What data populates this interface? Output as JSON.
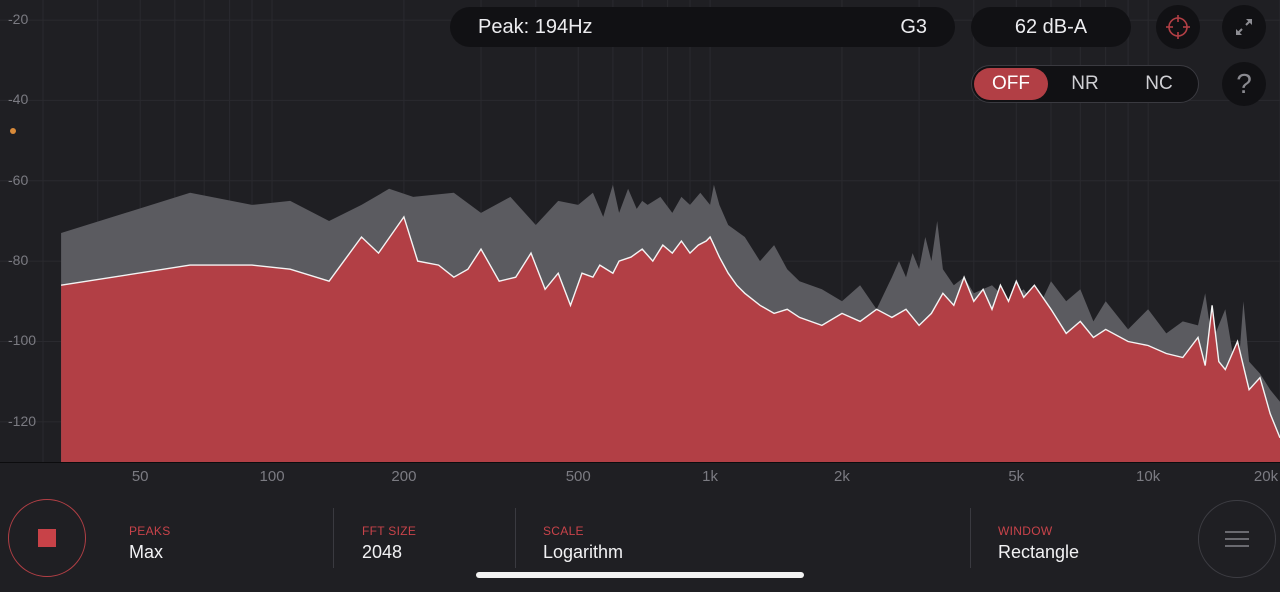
{
  "header": {
    "peak_text": "Peak: 194Hz",
    "note": "G3",
    "level": "62 dB-A",
    "help_label": "?"
  },
  "icons": {
    "target": "crosshair-icon",
    "expand": "expand-icon",
    "menu": "hamburger-menu-icon",
    "stop": "stop-icon"
  },
  "mode": {
    "options": [
      "OFF",
      "NR",
      "NC"
    ],
    "selected": "OFF"
  },
  "colors": {
    "accent": "#b23f45",
    "peak_fill": "#5b5b60",
    "bg": "#1f1f23"
  },
  "chart_data": {
    "type": "area",
    "x_scale": "log",
    "xlim": [
      30,
      20000
    ],
    "ylim": [
      -130,
      -15
    ],
    "y_ticks": [
      -20,
      -40,
      -60,
      -80,
      -100,
      -120
    ],
    "x_ticks": [
      {
        "value": 50,
        "label": "50"
      },
      {
        "value": 100,
        "label": "100"
      },
      {
        "value": 200,
        "label": "200"
      },
      {
        "value": 500,
        "label": "500"
      },
      {
        "value": 1000,
        "label": "1k"
      },
      {
        "value": 2000,
        "label": "2k"
      },
      {
        "value": 5000,
        "label": "5k"
      },
      {
        "value": 10000,
        "label": "10k"
      },
      {
        "value": 20000,
        "label": "20k"
      }
    ],
    "series": [
      {
        "id": "peak",
        "x": [
          33,
          65,
          90,
          110,
          135,
          160,
          185,
          210,
          260,
          300,
          350,
          400,
          450,
          500,
          540,
          570,
          600,
          620,
          650,
          680,
          700,
          720,
          770,
          820,
          860,
          900,
          950,
          1000,
          1020,
          1050,
          1100,
          1200,
          1300,
          1400,
          1500,
          1600,
          1800,
          2000,
          2200,
          2400,
          2600,
          2700,
          2800,
          2900,
          3000,
          3100,
          3200,
          3300,
          3400,
          3600,
          3800,
          4000,
          4400,
          4800,
          5200,
          5600,
          6000,
          6500,
          7000,
          7500,
          8000,
          9000,
          10000,
          11000,
          12000,
          13000,
          13500,
          14000,
          15000,
          16000,
          16500,
          17000,
          18000,
          19000,
          20000
        ],
        "y": [
          -73,
          -63,
          -66,
          -65,
          -70,
          -66,
          -62,
          -64,
          -63,
          -68,
          -64,
          -71,
          -65,
          -66,
          -63,
          -69,
          -61,
          -68,
          -62,
          -67,
          -65,
          -66,
          -64,
          -68,
          -64,
          -66,
          -63,
          -66,
          -61,
          -66,
          -71,
          -74,
          -80,
          -76,
          -82,
          -85,
          -87,
          -90,
          -86,
          -92,
          -84,
          -80,
          -84,
          -78,
          -82,
          -74,
          -80,
          -70,
          -82,
          -86,
          -84,
          -88,
          -86,
          -90,
          -87,
          -92,
          -85,
          -90,
          -87,
          -95,
          -90,
          -97,
          -92,
          -98,
          -95,
          -96,
          -88,
          -100,
          -92,
          -110,
          -90,
          -105,
          -108,
          -112,
          -115
        ]
      },
      {
        "id": "current",
        "x": [
          33,
          65,
          90,
          110,
          135,
          160,
          175,
          200,
          215,
          240,
          260,
          280,
          300,
          330,
          360,
          390,
          420,
          450,
          480,
          510,
          540,
          560,
          600,
          620,
          660,
          700,
          740,
          780,
          820,
          860,
          900,
          940,
          980,
          1000,
          1020,
          1050,
          1100,
          1150,
          1200,
          1300,
          1400,
          1500,
          1600,
          1800,
          2000,
          2200,
          2400,
          2600,
          2800,
          3000,
          3200,
          3400,
          3600,
          3800,
          4000,
          4200,
          4400,
          4600,
          4800,
          5000,
          5200,
          5500,
          6000,
          6500,
          7000,
          7500,
          8000,
          9000,
          10000,
          11000,
          12000,
          13000,
          13500,
          14000,
          14500,
          15000,
          16000,
          17000,
          18000,
          19000,
          20000
        ],
        "y": [
          -86,
          -81,
          -81,
          -82,
          -85,
          -74,
          -78,
          -69,
          -80,
          -81,
          -84,
          -82,
          -77,
          -85,
          -84,
          -78,
          -87,
          -83,
          -91,
          -83,
          -84,
          -81,
          -83,
          -80,
          -79,
          -77,
          -80,
          -76,
          -78,
          -75,
          -78,
          -76,
          -75,
          -74,
          -76,
          -79,
          -83,
          -86,
          -88,
          -91,
          -93,
          -92,
          -94,
          -96,
          -93,
          -95,
          -92,
          -94,
          -92,
          -96,
          -93,
          -88,
          -91,
          -84,
          -90,
          -87,
          -92,
          -86,
          -90,
          -85,
          -89,
          -86,
          -92,
          -98,
          -95,
          -99,
          -97,
          -100,
          -101,
          -103,
          -104,
          -99,
          -106,
          -91,
          -105,
          -107,
          -100,
          -112,
          -109,
          -118,
          -124
        ]
      }
    ]
  },
  "params": [
    {
      "label": "PEAKS",
      "value": "Max"
    },
    {
      "label": "FFT SIZE",
      "value": "2048"
    },
    {
      "label": "SCALE",
      "value": "Logarithm"
    },
    {
      "label": "WINDOW",
      "value": "Rectangle"
    }
  ]
}
